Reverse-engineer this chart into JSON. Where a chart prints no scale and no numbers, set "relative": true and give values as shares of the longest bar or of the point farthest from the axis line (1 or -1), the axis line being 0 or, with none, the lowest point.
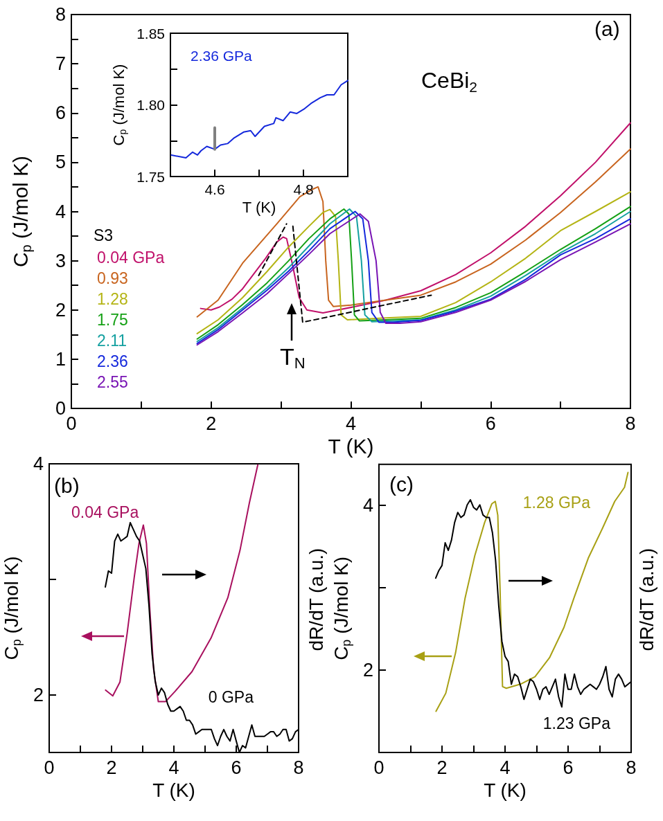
{
  "chart_data": [
    {
      "type": "line",
      "xlabel": "T (K)",
      "ylabel": "C$_{p}$ (J/mol K)",
      "legend": "left",
      "legend_title": "S3",
      "marker": "none",
      "line_style": "solid",
      "grid": false,
      "xlim": [
        0,
        8
      ],
      "ylim": [
        0,
        8
      ],
      "xticks": [
        0,
        {
          "value": 1,
          "label": null
        },
        2,
        {
          "value": 3,
          "label": null
        },
        4,
        {
          "value": 5,
          "label": null
        },
        6,
        {
          "value": 7,
          "label": null
        },
        8
      ],
      "yticks": [
        0,
        {
          "value": 0.5,
          "label": null
        },
        1,
        {
          "value": 1.5,
          "label": null
        },
        2,
        {
          "value": 2.5,
          "label": null
        },
        3,
        {
          "value": 3.5,
          "label": null
        },
        4,
        {
          "value": 4.5,
          "label": null
        },
        5,
        {
          "value": 5.5,
          "label": null
        },
        6,
        {
          "value": 6.5,
          "label": null
        },
        7,
        {
          "value": 7.5,
          "label": null
        },
        8
      ],
      "annotations": [
        "(a)",
        "CeBi$_{2}$",
        "T$_{N}$"
      ],
      "series": [
        {
          "name": "0.04 GPa",
          "color": "#c0106a",
          "x": [
            1.85,
            2.0,
            2.12,
            2.3,
            2.45,
            2.62,
            2.78,
            2.94,
            3.03,
            3.08,
            3.16,
            3.26,
            3.37,
            3.6,
            4.1,
            4.5,
            5.0,
            5.5,
            6.0,
            6.5,
            7.0,
            7.5,
            8.0
          ],
          "values": [
            2.03,
            2.0,
            2.06,
            2.22,
            2.43,
            2.75,
            3.05,
            3.38,
            3.48,
            3.45,
            2.95,
            2.25,
            2.0,
            1.94,
            2.08,
            2.2,
            2.39,
            2.72,
            3.16,
            3.7,
            4.32,
            5.0,
            5.8
          ]
        },
        {
          "name": "0.93",
          "color": "#c8641e",
          "x": [
            1.8,
            2.1,
            2.45,
            2.94,
            3.27,
            3.45,
            3.53,
            3.6,
            3.64,
            3.68,
            3.75,
            4.0,
            4.5,
            5.0,
            5.5,
            6.0,
            6.5,
            7.0,
            7.5,
            8.0
          ],
          "values": [
            1.86,
            2.2,
            2.95,
            3.75,
            4.3,
            4.45,
            4.5,
            4.2,
            3.0,
            2.2,
            2.07,
            2.1,
            2.2,
            2.3,
            2.57,
            2.93,
            3.42,
            3.98,
            4.6,
            5.27
          ]
        },
        {
          "name": "1.28",
          "color": "#b4b414",
          "x": [
            1.8,
            2.1,
            2.45,
            2.8,
            3.11,
            3.4,
            3.6,
            3.7,
            3.78,
            3.82,
            3.86,
            3.95,
            4.5,
            5.0,
            5.5,
            6.0,
            6.5,
            7.0,
            7.5,
            8.0
          ],
          "values": [
            1.52,
            1.8,
            2.25,
            2.78,
            3.28,
            3.7,
            3.98,
            4.04,
            3.9,
            3.0,
            1.9,
            1.8,
            1.84,
            1.87,
            2.15,
            2.57,
            3.05,
            3.61,
            4.0,
            4.4
          ]
        },
        {
          "name": "1.75",
          "color": "#14a014",
          "x": [
            1.8,
            2.1,
            2.45,
            2.8,
            3.11,
            3.4,
            3.7,
            3.9,
            3.97,
            4.01,
            4.05,
            4.12,
            4.5,
            5.0,
            5.5,
            6.0,
            6.5,
            7.0,
            7.5,
            8.0
          ],
          "values": [
            1.41,
            1.7,
            2.11,
            2.55,
            3.0,
            3.45,
            3.85,
            4.05,
            3.95,
            3.0,
            1.9,
            1.78,
            1.8,
            1.83,
            2.05,
            2.35,
            2.78,
            3.23,
            3.65,
            4.1
          ]
        },
        {
          "name": "2.11",
          "color": "#14a0a0",
          "x": [
            1.8,
            2.1,
            2.45,
            2.8,
            3.11,
            3.4,
            3.7,
            3.98,
            4.08,
            4.15,
            4.2,
            4.3,
            4.5,
            5.0,
            5.5,
            6.0,
            6.5,
            7.0,
            7.5,
            8.0
          ],
          "values": [
            1.36,
            1.64,
            2.04,
            2.45,
            2.86,
            3.3,
            3.75,
            4.05,
            3.9,
            3.0,
            1.9,
            1.76,
            1.77,
            1.8,
            2.0,
            2.28,
            2.7,
            3.16,
            3.55,
            4.0
          ]
        },
        {
          "name": "2.36",
          "color": "#1428dc",
          "x": [
            1.8,
            2.1,
            2.45,
            2.8,
            3.11,
            3.4,
            3.7,
            4.06,
            4.17,
            4.25,
            4.3,
            4.4,
            4.6,
            5.0,
            5.5,
            6.0,
            6.5,
            7.0,
            7.5,
            8.0
          ],
          "values": [
            1.32,
            1.6,
            2.0,
            2.4,
            2.79,
            3.2,
            3.65,
            4.0,
            3.85,
            3.0,
            1.95,
            1.75,
            1.75,
            1.79,
            1.98,
            2.22,
            2.62,
            3.12,
            3.45,
            3.85
          ]
        },
        {
          "name": "2.55",
          "color": "#7814b4",
          "x": [
            1.8,
            2.1,
            2.45,
            2.8,
            3.11,
            3.4,
            3.7,
            4.13,
            4.25,
            4.36,
            4.42,
            4.5,
            4.7,
            5.0,
            5.5,
            6.0,
            6.5,
            7.0,
            7.5,
            8.0
          ],
          "values": [
            1.29,
            1.56,
            1.94,
            2.33,
            2.74,
            3.13,
            3.55,
            3.95,
            3.8,
            3.0,
            1.95,
            1.73,
            1.73,
            1.76,
            1.95,
            2.2,
            2.58,
            3.02,
            3.38,
            3.75
          ]
        },
        {
          "color": "#000000",
          "line_style": "dashed",
          "x": [
            2.68,
            3.08
          ],
          "values": [
            2.7,
            3.75
          ]
        },
        {
          "color": "#000000",
          "line_style": "dashed",
          "x": [
            3.17,
            3.31,
            5.15
          ],
          "values": [
            3.7,
            1.75,
            2.3
          ]
        }
      ]
    },
    {
      "type": "line",
      "xlabel": "T (K)",
      "ylabel": "C$_{p}$ (J/mol K)",
      "legend": "top left",
      "marker": "none",
      "line_style": "solid",
      "grid": false,
      "xlim": [
        4.5,
        4.9
      ],
      "ylim": [
        1.75,
        1.85
      ],
      "xticks": [
        4.6,
        {
          "value": 4.7,
          "label": null
        },
        4.8
      ],
      "yticks": [
        1.75,
        {
          "value": 1.775,
          "label": null
        },
        {
          "value": 1.8,
          "label": "1.80"
        },
        {
          "value": 1.825,
          "label": null
        },
        1.85
      ],
      "series": [
        {
          "name": "2.36 GPa",
          "color": "#1428dc",
          "x": [
            4.502,
            4.535,
            4.55,
            4.561,
            4.569,
            4.582,
            4.6,
            4.613,
            4.629,
            4.644,
            4.665,
            4.681,
            4.691,
            4.712,
            4.733,
            4.738,
            4.754,
            4.77,
            4.785,
            4.801,
            4.817,
            4.838,
            4.853,
            4.869,
            4.885,
            4.9
          ],
          "values": [
            1.765,
            1.763,
            1.767,
            1.765,
            1.768,
            1.771,
            1.769,
            1.772,
            1.773,
            1.777,
            1.781,
            1.782,
            1.778,
            1.785,
            1.787,
            1.791,
            1.789,
            1.795,
            1.794,
            1.797,
            1.801,
            1.805,
            1.807,
            1.807,
            1.814,
            1.817
          ]
        },
        {
          "color": "#808080",
          "x": [
            4.6,
            4.6
          ],
          "values": [
            1.769,
            1.784
          ]
        }
      ]
    },
    {
      "type": "line",
      "ylabel": "C$_{p}$ (J/mol K)",
      "legend": "top left",
      "marker": "none",
      "line_style": "solid",
      "grid": false,
      "tick_labels": "y",
      "xlim": [
        0,
        8
      ],
      "ylim": [
        1.5,
        4
      ],
      "yticks": [
        2,
        {
          "value": 3,
          "label": null
        },
        4
      ],
      "annotations": [
        "(b)"
      ],
      "series": [
        {
          "name": "0.04 GPa",
          "color": "#a8105e",
          "x": [
            1.81,
            2.04,
            2.27,
            2.5,
            2.73,
            2.88,
            3.02,
            3.12,
            3.23,
            3.35,
            3.5,
            3.73,
            4.04,
            4.58,
            5.19,
            5.73,
            6.12,
            6.42,
            6.69
          ],
          "values": [
            2.04,
            1.99,
            2.11,
            2.53,
            3.02,
            3.31,
            3.47,
            3.31,
            2.73,
            2.22,
            1.94,
            1.94,
            2.03,
            2.2,
            2.49,
            2.84,
            3.25,
            3.66,
            3.99
          ]
        }
      ]
    },
    {
      "type": "line",
      "relative": true,
      "xlabel": "T (K)",
      "ylabel": "dR/dT (a.u.)",
      "legend": "bottom right",
      "marker": "none",
      "line_style": "solid",
      "grid": false,
      "xlim": [
        0,
        8
      ],
      "xticks": [
        0,
        {
          "value": 1,
          "label": null
        },
        2,
        {
          "value": 3,
          "label": null
        },
        4,
        {
          "value": 5,
          "label": null
        },
        6,
        {
          "value": 7,
          "label": null
        },
        8
      ],
      "series": [
        {
          "name": "0 GPa",
          "color": "#000000",
          "x": [
            1.8,
            1.9,
            2.0,
            2.1,
            2.2,
            2.3,
            2.4,
            2.5,
            2.6,
            2.7,
            2.8,
            2.9,
            3.0,
            3.1,
            3.2,
            3.3,
            3.4,
            3.5,
            3.6,
            3.7,
            3.8,
            3.9,
            4.0,
            4.1,
            4.2,
            4.3,
            4.4,
            4.5,
            4.6,
            4.7,
            4.8,
            4.9,
            5.0,
            5.1,
            5.2,
            5.3,
            5.4,
            5.5,
            5.6,
            5.7,
            5.8,
            5.9,
            6.0,
            6.1,
            6.2,
            6.3,
            6.4,
            6.5,
            6.6,
            6.7,
            6.8,
            6.9,
            7.0,
            7.1,
            7.2,
            7.3,
            7.4,
            7.5,
            7.6,
            7.7,
            7.8,
            7.9,
            8.0
          ],
          "values": [
            0.72,
            0.79,
            0.78,
            0.92,
            0.95,
            0.92,
            0.93,
            0.94,
            1.0,
            0.97,
            0.94,
            0.92,
            0.86,
            0.8,
            0.64,
            0.43,
            0.31,
            0.25,
            0.28,
            0.26,
            0.21,
            0.18,
            0.18,
            0.19,
            0.2,
            0.18,
            0.14,
            0.14,
            0.12,
            0.08,
            0.09,
            0.1,
            0.1,
            0.1,
            0.1,
            0.06,
            0.03,
            0.07,
            0.1,
            0.07,
            0.05,
            0.1,
            0.05,
            0.0,
            0.03,
            0.02,
            0.07,
            0.12,
            0.07,
            0.07,
            0.07,
            0.07,
            0.08,
            0.09,
            0.09,
            0.07,
            0.08,
            0.1,
            0.1,
            0.05,
            0.06,
            0.09,
            0.1
          ]
        }
      ]
    },
    {
      "type": "line",
      "ylabel": "C$_{p}$ (J/mol K)",
      "legend": "top right",
      "marker": "none",
      "line_style": "solid",
      "grid": false,
      "tick_labels": "y",
      "xlim": [
        0,
        8
      ],
      "ylim": [
        1,
        4.5
      ],
      "yticks": [
        2,
        {
          "value": 3,
          "label": null
        },
        4
      ],
      "annotations": [
        "(c)"
      ],
      "series": [
        {
          "name": "1.28 GPa",
          "color": "#a8a014",
          "x": [
            1.81,
            2.12,
            2.43,
            2.73,
            3.04,
            3.35,
            3.58,
            3.69,
            3.77,
            3.84,
            3.92,
            4.04,
            4.49,
            4.95,
            5.41,
            5.87,
            6.18,
            6.64,
            7.1,
            7.48,
            7.79,
            7.9
          ],
          "values": [
            1.5,
            1.72,
            2.21,
            2.87,
            3.39,
            3.79,
            4.02,
            4.05,
            3.88,
            3.01,
            1.8,
            1.78,
            1.83,
            1.92,
            2.15,
            2.52,
            2.87,
            3.36,
            3.73,
            4.05,
            4.22,
            4.4
          ]
        }
      ]
    },
    {
      "type": "line",
      "relative": true,
      "xlabel": "T (K)",
      "ylabel": "dR/dT (a.u.)",
      "legend": "bottom right",
      "marker": "none",
      "line_style": "solid",
      "grid": false,
      "xlim": [
        0,
        8
      ],
      "xticks": [
        0,
        {
          "value": 1,
          "label": null
        },
        2,
        {
          "value": 3,
          "label": null
        },
        4,
        {
          "value": 5,
          "label": null
        },
        6,
        {
          "value": 7,
          "label": null
        },
        8
      ],
      "series": [
        {
          "name": "1.23 GPa",
          "color": "#000000",
          "x": [
            1.8,
            1.9,
            2.0,
            2.1,
            2.2,
            2.3,
            2.4,
            2.5,
            2.6,
            2.7,
            2.8,
            2.9,
            3.0,
            3.1,
            3.2,
            3.3,
            3.4,
            3.5,
            3.6,
            3.7,
            3.8,
            3.9,
            4.0,
            4.1,
            4.2,
            4.3,
            4.4,
            4.5,
            4.6,
            4.7,
            4.8,
            4.9,
            5.0,
            5.1,
            5.2,
            5.3,
            5.4,
            5.5,
            5.6,
            5.7,
            5.8,
            5.9,
            6.0,
            6.1,
            6.2,
            6.3,
            6.4,
            6.5,
            6.6,
            6.7,
            6.8,
            6.9,
            7.0,
            7.1,
            7.2,
            7.3,
            7.4,
            7.5,
            7.6,
            7.7,
            7.8,
            7.9,
            8.0
          ],
          "values": [
            0.69,
            0.72,
            0.74,
            0.83,
            0.8,
            0.84,
            0.91,
            0.95,
            0.93,
            0.94,
            0.98,
            1.0,
            0.97,
            0.96,
            0.98,
            0.94,
            0.93,
            0.93,
            0.87,
            0.76,
            0.58,
            0.44,
            0.38,
            0.36,
            0.27,
            0.31,
            0.3,
            0.26,
            0.21,
            0.25,
            0.29,
            0.28,
            0.25,
            0.21,
            0.25,
            0.26,
            0.23,
            0.26,
            0.29,
            0.22,
            0.18,
            0.31,
            0.25,
            0.25,
            0.31,
            0.26,
            0.23,
            0.25,
            0.26,
            0.27,
            0.26,
            0.25,
            0.27,
            0.3,
            0.34,
            0.25,
            0.22,
            0.29,
            0.31,
            0.29,
            0.26,
            0.27,
            0.28
          ]
        }
      ]
    }
  ]
}
